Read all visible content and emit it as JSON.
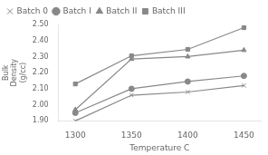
{
  "chart_data": {
    "type": "line",
    "xlabel": "Temperature C",
    "ylabel": [
      "Bulk",
      "Density",
      "(g/cc)"
    ],
    "x": [
      1300,
      1350,
      1400,
      1450
    ],
    "series": [
      {
        "name": "Batch 0",
        "color": "#888888",
        "marker": "cross",
        "line_style": "solid",
        "values": [
          1.9,
          2.06,
          2.08,
          2.12
        ]
      },
      {
        "name": "Batch I",
        "color": "#888888",
        "marker": "circle",
        "line_style": "solid",
        "values": [
          1.95,
          2.1,
          2.145,
          2.18
        ]
      },
      {
        "name": "Batch II",
        "color": "#888888",
        "marker": "triangle",
        "line_style": "solid",
        "values": [
          1.97,
          2.285,
          2.3,
          2.34
        ]
      },
      {
        "name": "Batch III",
        "color": "#888888",
        "marker": "square",
        "line_style": "solid",
        "values": [
          2.13,
          2.305,
          2.345,
          2.48
        ]
      }
    ],
    "xlim": [
      1285,
      1465
    ],
    "xticks": [
      1300,
      1350,
      1400,
      1450
    ],
    "ylim": [
      1.9,
      2.5
    ],
    "yticks": [
      {
        "value": 1.9,
        "label": "1.90"
      },
      {
        "value": 2.0,
        "label": "2.00"
      },
      {
        "value": 2.1,
        "label": "2.10"
      },
      {
        "value": 2.2,
        "label": "2.20"
      },
      {
        "value": 2.3,
        "label": "2.30"
      },
      {
        "value": 2.4,
        "label": "2.40"
      },
      {
        "value": 2.5,
        "label": "2.50"
      }
    ],
    "grid": false,
    "legend": "upper left"
  }
}
